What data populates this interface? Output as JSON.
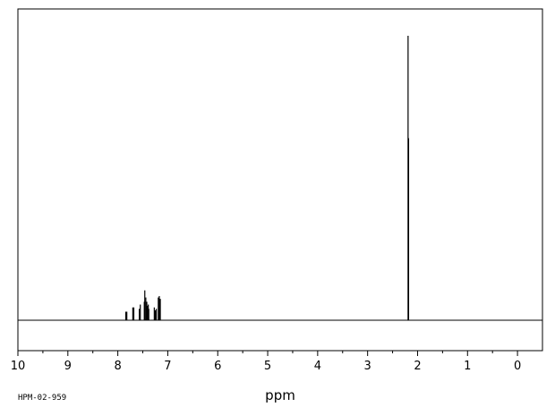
{
  "chart_data": {
    "type": "line",
    "title": "",
    "xlabel": "ppm",
    "ylabel": "",
    "xlim": [
      10.0,
      -0.5
    ],
    "ylim": [
      -0.11,
      1.0
    ],
    "x_reversed": true,
    "x_ticks": [
      10,
      9,
      8,
      7,
      6,
      5,
      4,
      3,
      2,
      1,
      0
    ],
    "x_tick_labels": [
      "10",
      "9",
      "8",
      "7",
      "6",
      "5",
      "4",
      "3",
      "2",
      "1",
      "0"
    ],
    "minor_tick_step": 0.5,
    "grid": false,
    "legend": "none",
    "series": [
      {
        "peaks_ppm": [
          7.84,
          7.82,
          7.7,
          7.68,
          7.57,
          7.55,
          7.47,
          7.46,
          7.44,
          7.42,
          7.41,
          7.39,
          7.38,
          7.27,
          7.25,
          7.23,
          7.19,
          7.17,
          7.15,
          2.19,
          2.18
        ],
        "intensities": [
          0.03,
          0.03,
          0.045,
          0.045,
          0.04,
          0.055,
          0.065,
          0.105,
          0.08,
          0.065,
          0.05,
          0.055,
          0.04,
          0.045,
          0.035,
          0.04,
          0.08,
          0.085,
          0.075,
          1.0,
          0.64
        ]
      }
    ]
  },
  "footer_code": "HPM-02-959"
}
